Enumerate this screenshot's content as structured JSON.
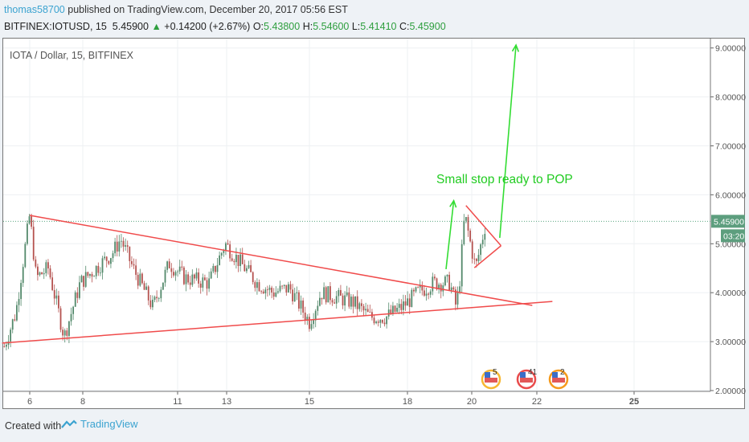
{
  "header": {
    "user": "thomas58700",
    "published": "published on TradingView.com, December 20, 2017 05:56 EST"
  },
  "ticker": {
    "symbol": "BITFINEX:IOTUSD, 15",
    "last": "5.45900",
    "change": "+0.14200 (+2.67%)",
    "o_label": "O:",
    "o": "5.43800",
    "h_label": "H:",
    "h": "5.54600",
    "l_label": "L:",
    "l": "5.41410",
    "c_label": "C:",
    "c": "5.45900"
  },
  "chart_data": {
    "type": "candlestick",
    "title": "IOTA / Dollar, 15, BITFINEX",
    "x_ticks": [
      "6",
      "8",
      "11",
      "13",
      "15",
      "18",
      "20",
      "22",
      "25"
    ],
    "y_ticks": [
      "2.00000",
      "3.00000",
      "4.00000",
      "5.00000",
      "6.00000",
      "7.00000",
      "8.00000",
      "9.00000"
    ],
    "ylim": [
      2,
      9
    ],
    "last_price": "5.45900",
    "countdown": "03:20",
    "price_path": {
      "x": [
        -0.48,
        -0.26,
        0,
        0.12,
        0.35,
        0.65,
        0.95,
        1.14,
        1.31,
        1.4,
        1.53,
        1.74,
        1.91,
        2.15,
        2.64,
        2.97,
        3.17,
        3.37,
        3.56,
        3.76,
        4.0,
        4.12,
        4.29,
        4.45,
        4.62,
        4.78,
        4.94,
        5.16,
        5.41,
        5.66,
        5.76,
        5.81,
        5.89,
        5.98,
        6.06,
        6.16,
        6.22
      ],
      "y": [
        2.9,
        3.6,
        5.6,
        4.3,
        4.5,
        3.1,
        4.2,
        4.5,
        4.8,
        5.1,
        4.5,
        3.7,
        4.6,
        4.3,
        4.2,
        5.0,
        4.6,
        4.2,
        4.0,
        4.1,
        3.4,
        4.0,
        3.9,
        3.8,
        3.5,
        3.5,
        3.7,
        4.0,
        4.2,
        4.2,
        3.7,
        4.2,
        5.6,
        5.0,
        4.5,
        5.1,
        5.45
      ]
    },
    "trendlines": [
      {
        "name": "upper-falling",
        "x": [
          0,
          6.93
        ],
        "y": [
          5.58,
          3.74
        ],
        "color": "#f04b4b"
      },
      {
        "name": "lower-rising",
        "x": [
          -0.52,
          7.16
        ],
        "y": [
          2.97,
          3.82
        ],
        "color": "#f04b4b"
      },
      {
        "name": "triangle-upper",
        "x": [
          5.91,
          6.45
        ],
        "y": [
          5.78,
          4.96
        ],
        "color": "#f04b4b"
      },
      {
        "name": "triangle-lower",
        "x": [
          6.04,
          6.45
        ],
        "y": [
          4.51,
          4.96
        ],
        "color": "#f04b4b"
      }
    ],
    "arrows": [
      {
        "name": "small-arrow",
        "x": [
          5.6,
          5.72
        ],
        "y": [
          4.48,
          5.88
        ],
        "color": "#33dd33"
      },
      {
        "name": "big-arrow",
        "x": [
          6.43,
          6.68
        ],
        "y": [
          5.12,
          9.06
        ],
        "color": "#33dd33"
      }
    ],
    "annotation": {
      "text": "Small stop ready to POP",
      "x": 5.45,
      "y": 6.3,
      "color": "#22cc22"
    },
    "events": [
      "5",
      "41",
      "2"
    ]
  },
  "footer": {
    "created": "Created with",
    "brand": "TradingView"
  }
}
